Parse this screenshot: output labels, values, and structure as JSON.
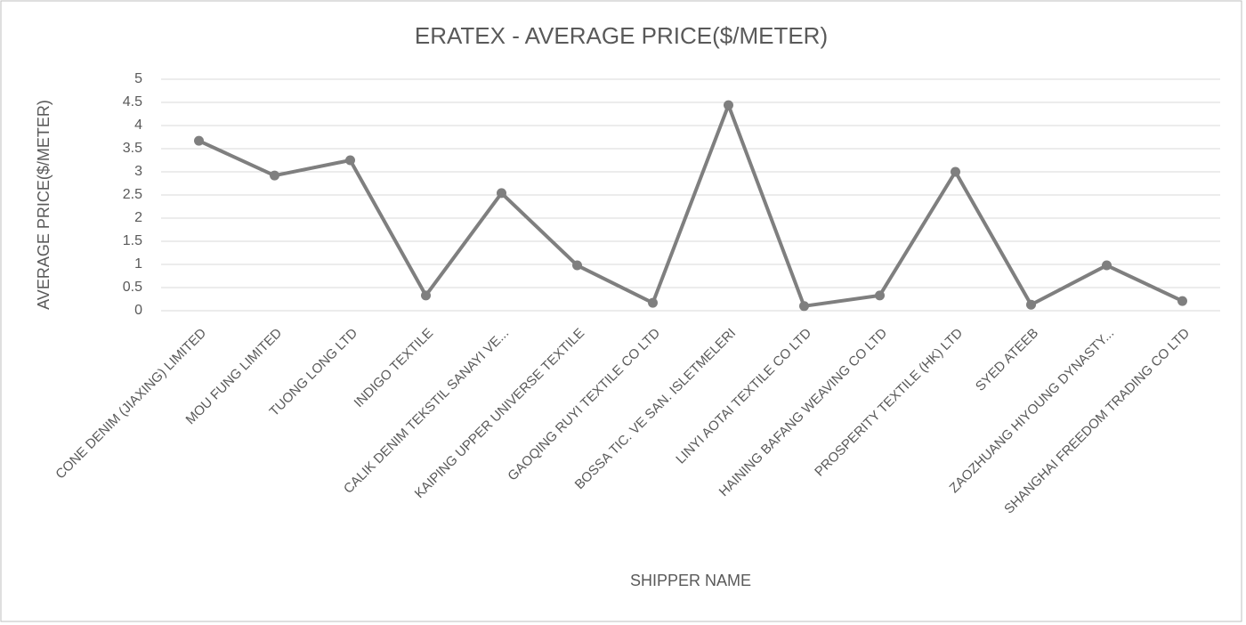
{
  "chart_data": {
    "type": "line",
    "title": "ERATEX - AVERAGE PRICE($/METER)",
    "x_label": "SHIPPER NAME",
    "y_label": "AVERAGE  PRICE($/METER)",
    "categories": [
      "CONE DENIM (JIAXING) LIMITED",
      "MOU FUNG LIMITED",
      "TUONG LONG LTD",
      "INDIGO TEXTILE",
      "CALIK DENIM TEKSTIL SANAYI VE...",
      "KAIPING UPPER UNIVERSE TEXTILE",
      "GAOQING RUYI TEXTILE CO LTD",
      "BOSSA TIC. VE SAN. ISLETMELERI",
      "LINYI AOTAI TEXTILE CO LTD",
      "HAINING BAFANG WEAVING CO LTD",
      "PROSPERITY TEXTILE (HK) LTD",
      "SYED ATEEB",
      "ZAOZHUANG HIYOUNG DYNASTY...",
      "SHANGHAI FREEDOM TRADING CO LTD"
    ],
    "series": [
      {
        "name": "AVERAGE PRICE($/METER)",
        "color": "#7f7f7f",
        "values": [
          3.67,
          2.92,
          3.25,
          0.33,
          2.54,
          0.98,
          0.17,
          4.44,
          0.1,
          0.33,
          3.0,
          0.13,
          0.98,
          0.21
        ]
      }
    ],
    "ylim": [
      0,
      5
    ],
    "yticks": [
      0,
      0.5,
      1,
      1.5,
      2,
      2.5,
      3,
      3.5,
      4,
      4.5,
      5
    ],
    "grid": true
  }
}
